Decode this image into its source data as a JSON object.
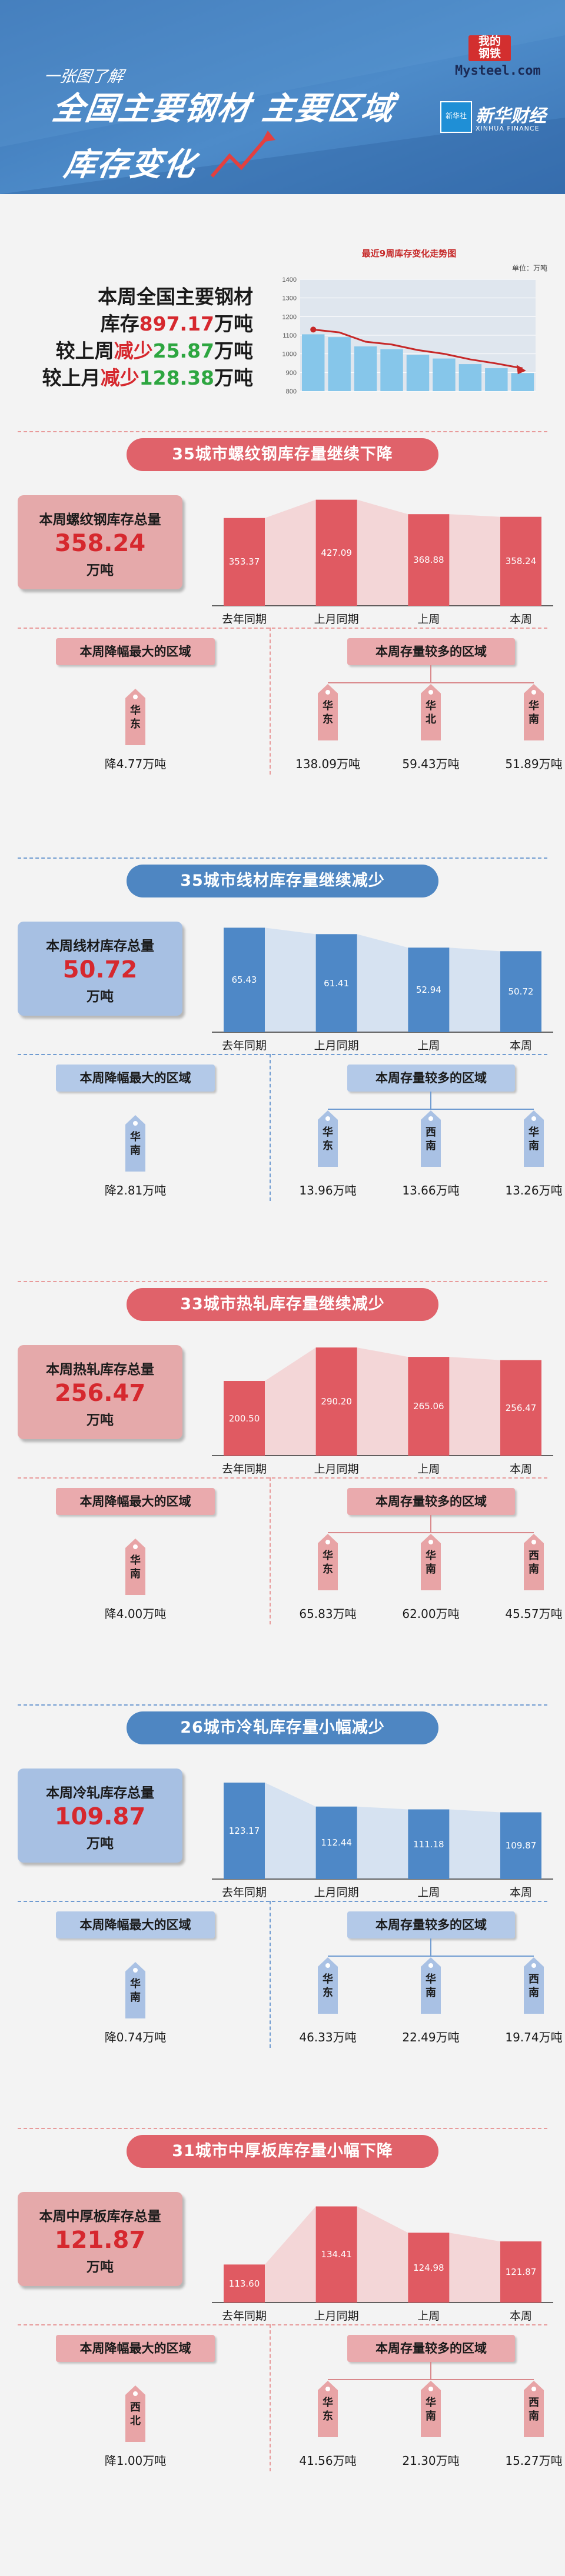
{
  "header": {
    "small": "一张图了解",
    "title_line1": "全国主要钢材  主要区域",
    "title_line2": "库存变化",
    "logo1_line1": "我的",
    "logo1_line2": "钢铁",
    "logo1_site": "Mysteel.com",
    "logo2_box": "新华社",
    "logo2_name": "新华财经",
    "logo2_sub": "XINHUA FINANCE"
  },
  "summary": {
    "line1": "本周全国主要钢材",
    "stock_prefix": "库存",
    "stock_value": "897.17",
    "stock_unit": "万吨",
    "wow_prefix": "较上周",
    "wow_dir": "减少",
    "wow_value": "25.87",
    "wow_unit": "万吨",
    "mom_prefix": "较上月",
    "mom_dir": "减少",
    "mom_value": "128.38",
    "mom_unit": "万吨"
  },
  "mini_chart": {
    "title": "最近9周库存变化走势图",
    "unit": "单位：万吨",
    "yticks": [
      "1400",
      "1300",
      "1200",
      "1100",
      "1000",
      "900",
      "800"
    ]
  },
  "colors": {
    "pink_bar": "#e05a62",
    "blue_bar": "#4e88c7",
    "red_text": "#d6282e",
    "green_text": "#2da640"
  },
  "chart_data": [
    {
      "type": "line",
      "title": "最近9周库存变化走势图",
      "ylabel": "单位：万吨",
      "x": [
        1,
        2,
        3,
        4,
        5,
        6,
        7,
        8,
        9
      ],
      "values": [
        1105,
        1090,
        1040,
        1025,
        995,
        975,
        945,
        923,
        897
      ],
      "ylim": [
        800,
        1400
      ]
    },
    {
      "type": "bar",
      "title": "35城市螺纹钢库存量继续下降",
      "categories": [
        "去年同期",
        "上月同期",
        "上周",
        "本周"
      ],
      "values": [
        353.37,
        427.09,
        368.88,
        358.24
      ],
      "ylim": [
        0,
        450
      ]
    },
    {
      "type": "bar",
      "title": "35城市线材库存量继续减少",
      "categories": [
        "去年同期",
        "上月同期",
        "上周",
        "本周"
      ],
      "values": [
        65.43,
        61.41,
        52.94,
        50.72
      ],
      "ylim": [
        0,
        70
      ]
    },
    {
      "type": "bar",
      "title": "33城市热轧库存量继续减少",
      "categories": [
        "去年同期",
        "上月同期",
        "上周",
        "本周"
      ],
      "values": [
        200.5,
        290.2,
        265.06,
        256.47
      ],
      "ylim": [
        0,
        300
      ]
    },
    {
      "type": "bar",
      "title": "26城市冷轧库存量小幅减少",
      "categories": [
        "去年同期",
        "上月同期",
        "上周",
        "本周"
      ],
      "values": [
        123.17,
        112.44,
        111.18,
        109.87
      ],
      "ylim": [
        80,
        130
      ]
    },
    {
      "type": "bar",
      "title": "31城市中厚板库存量小幅下降",
      "categories": [
        "去年同期",
        "上月同期",
        "上周",
        "本周"
      ],
      "values": [
        113.6,
        134.41,
        124.98,
        121.87
      ],
      "ylim": [
        100,
        140
      ]
    }
  ],
  "sections": [
    {
      "banner": "35城市螺纹钢库存量继续下降",
      "card_label": "本周螺纹钢库存总量",
      "card_value": "358.24",
      "card_unit": "万吨",
      "bar_labels": [
        "353.37",
        "427.09",
        "368.88",
        "358.24"
      ],
      "decline_title": "本周降幅最大的区域",
      "decline_region": [
        "华",
        "东"
      ],
      "decline_value": "降4.77万吨",
      "more_title": "本周存量较多的区域",
      "more_regions": [
        [
          "华",
          "东"
        ],
        [
          "华",
          "北"
        ],
        [
          "华",
          "南"
        ]
      ],
      "more_values": [
        "138.09万吨",
        "59.43万吨",
        "51.89万吨"
      ]
    },
    {
      "banner": "35城市线材库存量继续减少",
      "card_label": "本周线材库存总量",
      "card_value": "50.72",
      "card_unit": "万吨",
      "bar_labels": [
        "65.43",
        "61.41",
        "52.94",
        "50.72"
      ],
      "decline_title": "本周降幅最大的区域",
      "decline_region": [
        "华",
        "南"
      ],
      "decline_value": "降2.81万吨",
      "more_title": "本周存量较多的区域",
      "more_regions": [
        [
          "华",
          "东"
        ],
        [
          "西",
          "南"
        ],
        [
          "华",
          "南"
        ]
      ],
      "more_values": [
        "13.96万吨",
        "13.66万吨",
        "13.26万吨"
      ]
    },
    {
      "banner": "33城市热轧库存量继续减少",
      "card_label": "本周热轧库存总量",
      "card_value": "256.47",
      "card_unit": "万吨",
      "bar_labels": [
        "200.50",
        "290.20",
        "265.06",
        "256.47"
      ],
      "decline_title": "本周降幅最大的区域",
      "decline_region": [
        "华",
        "南"
      ],
      "decline_value": "降4.00万吨",
      "more_title": "本周存量较多的区域",
      "more_regions": [
        [
          "华",
          "东"
        ],
        [
          "华",
          "南"
        ],
        [
          "西",
          "南"
        ]
      ],
      "more_values": [
        "65.83万吨",
        "62.00万吨",
        "45.57万吨"
      ]
    },
    {
      "banner": "26城市冷轧库存量小幅减少",
      "card_label": "本周冷轧库存总量",
      "card_value": "109.87",
      "card_unit": "万吨",
      "bar_labels": [
        "123.17",
        "112.44",
        "111.18",
        "109.87"
      ],
      "decline_title": "本周降幅最大的区域",
      "decline_region": [
        "华",
        "南"
      ],
      "decline_value": "降0.74万吨",
      "more_title": "本周存量较多的区域",
      "more_regions": [
        [
          "华",
          "东"
        ],
        [
          "华",
          "南"
        ],
        [
          "西",
          "南"
        ]
      ],
      "more_values": [
        "46.33万吨",
        "22.49万吨",
        "19.74万吨"
      ]
    },
    {
      "banner": "31城市中厚板库存量小幅下降",
      "card_label": "本周中厚板库存总量",
      "card_value": "121.87",
      "card_unit": "万吨",
      "bar_labels": [
        "113.60",
        "134.41",
        "124.98",
        "121.87"
      ],
      "decline_title": "本周降幅最大的区域",
      "decline_region": [
        "西",
        "北"
      ],
      "decline_value": "降1.00万吨",
      "more_title": "本周存量较多的区域",
      "more_regions": [
        [
          "华",
          "东"
        ],
        [
          "华",
          "南"
        ],
        [
          "西",
          "南"
        ]
      ],
      "more_values": [
        "41.56万吨",
        "21.30万吨",
        "15.27万吨"
      ]
    }
  ]
}
